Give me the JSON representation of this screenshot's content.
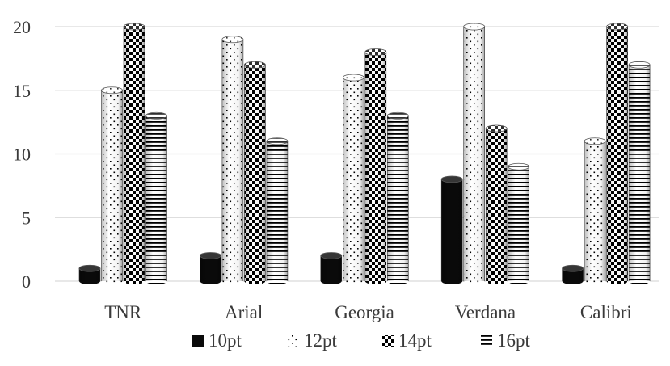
{
  "chart_data": {
    "type": "bar",
    "style": "3d-cylinder",
    "categories": [
      "TNR",
      "Arial",
      "Georgia",
      "Verdana",
      "Calibri"
    ],
    "series": [
      {
        "name": "10pt",
        "values": [
          1,
          2,
          2,
          8,
          1
        ],
        "pattern": "solid-black"
      },
      {
        "name": "12pt",
        "values": [
          15,
          19,
          16,
          20,
          11
        ],
        "pattern": "sparse-dots"
      },
      {
        "name": "14pt",
        "values": [
          20,
          17,
          18,
          12,
          20
        ],
        "pattern": "checkerboard"
      },
      {
        "name": "16pt",
        "values": [
          13,
          11,
          13,
          9,
          17
        ],
        "pattern": "horizontal-lines"
      }
    ],
    "yticks": [
      0,
      5,
      10,
      15,
      20
    ],
    "ylim": [
      0,
      20
    ],
    "grid": true,
    "legend_position": "bottom",
    "title": "",
    "xlabel": "",
    "ylabel": ""
  }
}
